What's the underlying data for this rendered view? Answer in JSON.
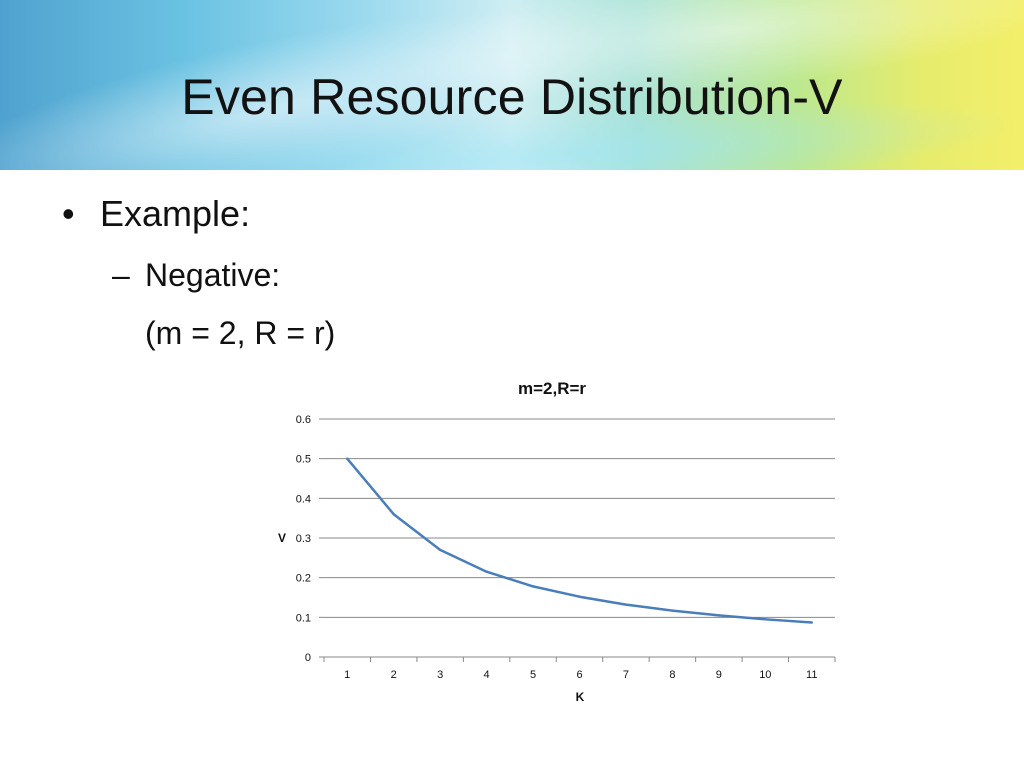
{
  "slide": {
    "title": "Even Resource Distribution-V",
    "bullet": "Example:",
    "bullet_marker": "•",
    "sub_marker": "–",
    "sub_bullet": "Negative:",
    "params": "(m = 2, R = r)"
  },
  "colors": {
    "line": "#4a7ebb",
    "grid": "#888888",
    "text": "#111111"
  },
  "chart_data": {
    "type": "line",
    "title": "m=2,R=r",
    "xlabel": "K",
    "ylabel": "V",
    "categories": [
      "1",
      "2",
      "3",
      "4",
      "5",
      "6",
      "7",
      "8",
      "9",
      "10",
      "11"
    ],
    "series": [
      {
        "values": [
          0.5,
          0.36,
          0.27,
          0.215,
          0.178,
          0.152,
          0.132,
          0.117,
          0.105,
          0.095,
          0.087
        ]
      }
    ],
    "ylim": [
      0,
      0.6
    ],
    "yticks": [
      "0",
      "0.1",
      "0.2",
      "0.3",
      "0.4",
      "0.5",
      "0.6"
    ],
    "grid": true,
    "legend": "none"
  }
}
